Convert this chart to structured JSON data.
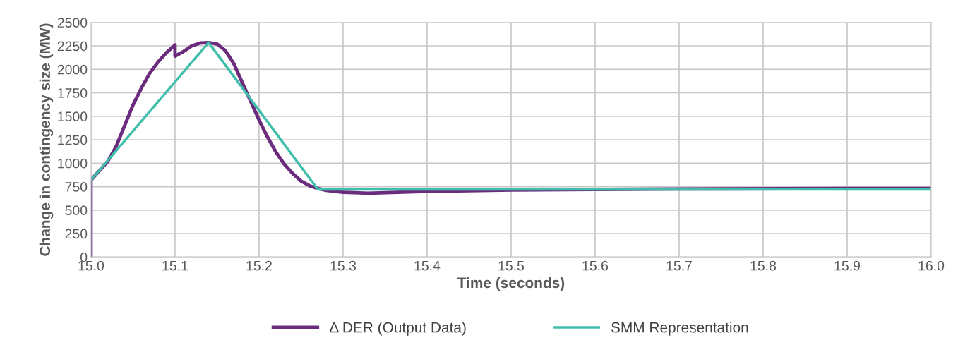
{
  "chart_data": {
    "type": "line",
    "xlabel": "Time (seconds)",
    "ylabel": "Change in contingency size (MW)",
    "xlim": [
      15.0,
      16.0
    ],
    "xticks": [
      {
        "value": 15.0,
        "label": "15.0"
      },
      15.1,
      15.2,
      15.3,
      15.4,
      15.5,
      15.6,
      15.7,
      15.8,
      15.9,
      {
        "value": 16.0,
        "label": "16.0"
      }
    ],
    "ylim": [
      0,
      2500
    ],
    "yticks": [
      0,
      250,
      500,
      750,
      1000,
      1250,
      1500,
      1750,
      2000,
      2250,
      2500
    ],
    "grid": true,
    "legend": "bottom",
    "marker": "none",
    "line_style": "solid",
    "series": [
      {
        "name": "Δ DER (Output Data)",
        "color": "#6b2c7e",
        "x": [
          15.0,
          15.0,
          15.02,
          15.03,
          15.04,
          15.05,
          15.06,
          15.07,
          15.08,
          15.09,
          15.1,
          15.1,
          15.11,
          15.12,
          15.13,
          15.14,
          15.15,
          15.16,
          15.17,
          15.18,
          15.19,
          15.2,
          15.21,
          15.22,
          15.23,
          15.24,
          15.25,
          15.26,
          15.27,
          15.28,
          15.3,
          15.33,
          15.4,
          15.5,
          15.7,
          15.9,
          16.0
        ],
        "values": [
          0,
          820,
          1020,
          1180,
          1400,
          1620,
          1800,
          1960,
          2080,
          2180,
          2260,
          2140,
          2190,
          2250,
          2280,
          2285,
          2270,
          2200,
          2060,
          1860,
          1660,
          1460,
          1280,
          1120,
          990,
          890,
          810,
          760,
          730,
          710,
          690,
          680,
          700,
          715,
          725,
          730,
          730
        ]
      },
      {
        "name": "SMM Representation",
        "color": "#3fbfab",
        "x": [
          15.0,
          15.14,
          15.27,
          16.0
        ],
        "values": [
          820,
          2285,
          720,
          720
        ]
      }
    ]
  }
}
